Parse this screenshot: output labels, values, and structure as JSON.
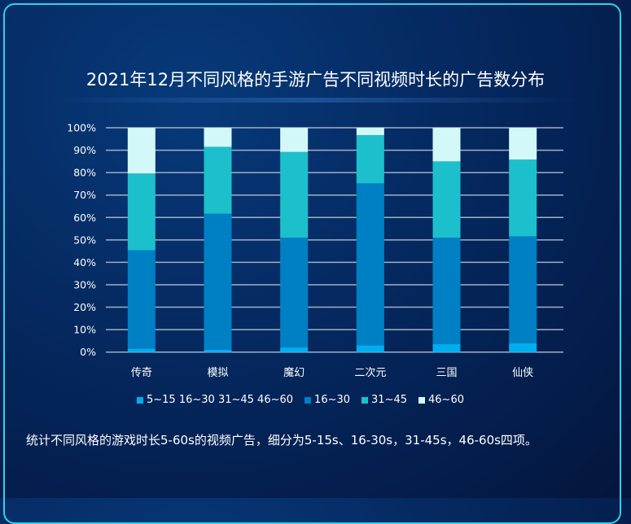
{
  "chart_data": {
    "type": "bar",
    "stacked": true,
    "title": "2021年12月不同风格的手游广告不同视频时长的广告数分布",
    "categories": [
      "传奇",
      "模拟",
      "魔幻",
      "二次元",
      "三国",
      "仙侠"
    ],
    "ylim": [
      0,
      100
    ],
    "yticks": [
      "0%",
      "10%",
      "20%",
      "30%",
      "40%",
      "50%",
      "60%",
      "70%",
      "80%",
      "90%",
      "100%"
    ],
    "grid": true,
    "legend_position": "bottom",
    "series": [
      {
        "name": "5~15 16~30 31~45 46~60",
        "color": "#00aeef",
        "values": [
          1.5,
          1.0,
          2.1,
          3.0,
          3.6,
          4.0
        ]
      },
      {
        "name": "16~30",
        "color": "#0080c4",
        "values": [
          43.9,
          60.7,
          48.9,
          72.2,
          47.4,
          47.6
        ]
      },
      {
        "name": "31~45",
        "color": "#1cc0cc",
        "values": [
          34.2,
          29.8,
          38.2,
          21.5,
          34.0,
          34.2
        ]
      },
      {
        "name": "46~60",
        "color": "#d2f8f8",
        "values": [
          20.4,
          8.5,
          10.8,
          3.3,
          15.0,
          14.2
        ]
      }
    ]
  },
  "note": "统计不同风格的游戏时长5-60s的视频广告，细分为5-15s、16-30s，31-45s，46-60s四项。"
}
